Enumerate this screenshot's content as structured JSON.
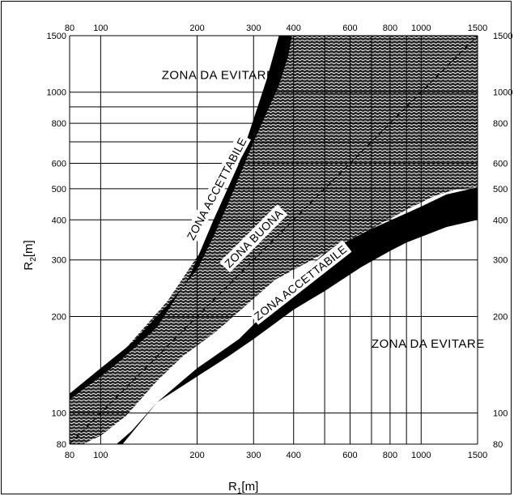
{
  "chart_data": {
    "type": "area",
    "title": "",
    "xlabel": "R1[m]",
    "xlabel_main": "R",
    "xlabel_sub": "1",
    "xlabel_unit": "[m]",
    "ylabel": "R2[m]",
    "ylabel_main": "R",
    "ylabel_sub": "2",
    "ylabel_unit": "[m]",
    "x_scale": "log",
    "y_scale": "log",
    "xlim": [
      80,
      1500
    ],
    "ylim": [
      80,
      1500
    ],
    "grid": true,
    "x_ticks": [
      80,
      100,
      200,
      300,
      400,
      600,
      800,
      1000,
      1500
    ],
    "y_ticks": [
      80,
      100,
      200,
      300,
      400,
      500,
      600,
      800,
      1000,
      1500
    ],
    "x_gridlines": [
      80,
      100,
      200,
      300,
      400,
      500,
      600,
      700,
      800,
      900,
      1000,
      1500
    ],
    "y_gridlines": [
      80,
      100,
      200,
      300,
      400,
      500,
      600,
      700,
      800,
      900,
      1000,
      1500
    ],
    "diagonal_line": [
      [
        80,
        80
      ],
      [
        1500,
        1500
      ]
    ],
    "regions": [
      {
        "name": "ZONA BUONA",
        "pattern": "hatched",
        "polygon": [
          [
            80,
            80
          ],
          [
            80,
            115
          ],
          [
            115,
            152
          ],
          [
            162,
            224
          ],
          [
            210,
            330
          ],
          [
            270,
            600
          ],
          [
            395,
            1500
          ],
          [
            1500,
            1500
          ],
          [
            1500,
            505
          ],
          [
            1300,
            500
          ],
          [
            1100,
            475
          ],
          [
            900,
            430
          ],
          [
            700,
            375
          ],
          [
            500,
            315
          ],
          [
            350,
            260
          ],
          [
            230,
            180
          ],
          [
            180,
            150
          ],
          [
            150,
            126
          ],
          [
            120,
            98
          ],
          [
            100,
            85
          ],
          [
            88,
            80
          ]
        ]
      },
      {
        "name": "ZONA ACCETTABILE",
        "color": "#000000",
        "polygon": [
          [
            80,
            110
          ],
          [
            110,
            140
          ],
          [
            150,
            185
          ],
          [
            190,
            268
          ],
          [
            225,
            400
          ],
          [
            270,
            600
          ],
          [
            330,
            1100
          ],
          [
            360,
            1500
          ],
          [
            395,
            1500
          ],
          [
            385,
            1300
          ],
          [
            360,
            1050
          ],
          [
            300,
            700
          ],
          [
            250,
            450
          ],
          [
            225,
            355
          ],
          [
            200,
            280
          ],
          [
            165,
            222
          ],
          [
            125,
            165
          ],
          [
            100,
            138
          ],
          [
            80,
            115
          ]
        ]
      },
      {
        "name": "ZONA ACCETTABILE",
        "color": "#000000",
        "polygon": [
          [
            112,
            80
          ],
          [
            125,
            88
          ],
          [
            150,
            108
          ],
          [
            200,
            138
          ],
          [
            270,
            170
          ],
          [
            350,
            220
          ],
          [
            420,
            270
          ],
          [
            500,
            315
          ],
          [
            700,
            375
          ],
          [
            1000,
            440
          ],
          [
            1200,
            480
          ],
          [
            1500,
            505
          ],
          [
            1500,
            400
          ],
          [
            1200,
            380
          ],
          [
            900,
            340
          ],
          [
            800,
            320
          ],
          [
            650,
            285
          ],
          [
            500,
            240
          ],
          [
            400,
            210
          ],
          [
            300,
            170
          ],
          [
            250,
            150
          ],
          [
            200,
            130
          ],
          [
            150,
            108
          ],
          [
            117,
            80
          ]
        ]
      }
    ],
    "annotations": [
      {
        "text": "ZONA DA EVITARE",
        "x": 155,
        "y": 1100
      },
      {
        "text": "ZONA DA EVITARE",
        "x": 700,
        "y": 160
      },
      {
        "text": "ZONA ACCETTABILE",
        "x": 230,
        "y": 500,
        "rotation": -62
      },
      {
        "text": "ZONA BUONA",
        "x": 300,
        "y": 350,
        "rotation": -45
      },
      {
        "text": "ZONA ACCETTABILE",
        "x": 420,
        "y": 255,
        "rotation": -38
      }
    ]
  }
}
